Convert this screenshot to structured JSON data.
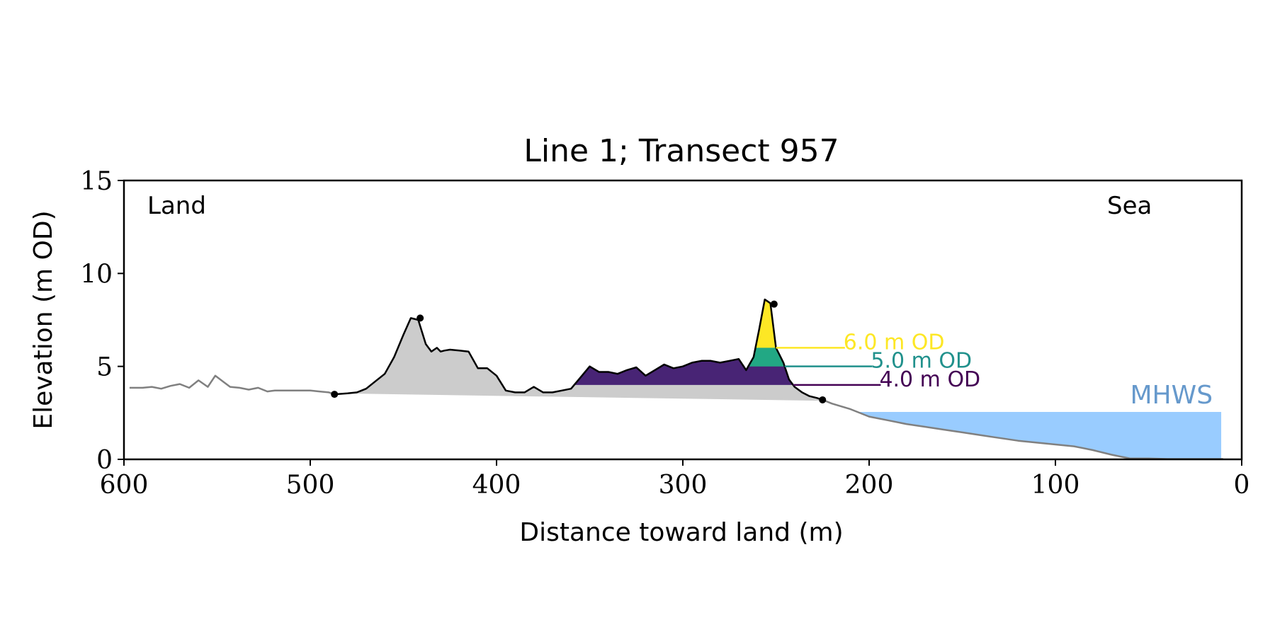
{
  "chart_data": {
    "type": "area",
    "title": "Line 1; Transect 957",
    "xlabel": "Distance toward land (m)",
    "ylabel": "Elevation (m OD)",
    "xlim": [
      600,
      0
    ],
    "ylim": [
      0,
      15
    ],
    "x_ticks": [
      600,
      500,
      400,
      300,
      200,
      100,
      0
    ],
    "y_ticks": [
      0,
      5,
      10,
      15
    ],
    "grid": false,
    "annotations": {
      "left": "Land",
      "right": "Sea"
    },
    "colors": {
      "profile_outer": "#808080",
      "profile_main": "#000000",
      "dune_fill": "#cccccc",
      "level_4": "#440154",
      "level_4_fill": "#482475",
      "level_5": "#21918c",
      "level_5_fill": "#22a884",
      "level_6": "#fde725",
      "mhws": "#99ccff",
      "mhws_label": "#6699cc"
    },
    "profile": {
      "x": [
        597,
        590,
        585,
        580,
        575,
        570,
        565,
        560,
        555,
        551,
        547,
        543,
        538,
        533,
        528,
        523,
        519,
        514,
        510,
        505,
        500,
        495,
        490,
        487
      ],
      "y": [
        3.85,
        3.85,
        3.9,
        3.8,
        3.95,
        4.05,
        3.85,
        4.25,
        3.9,
        4.5,
        4.2,
        3.9,
        3.85,
        3.75,
        3.85,
        3.65,
        3.7,
        3.7,
        3.7,
        3.7,
        3.7,
        3.65,
        3.6,
        3.5
      ]
    },
    "profile_seaward": {
      "x": [
        225,
        220,
        210,
        200,
        190,
        180,
        170,
        160,
        150,
        140,
        130,
        120,
        110,
        100,
        90,
        80,
        70,
        65,
        60,
        50,
        40,
        30,
        20,
        10
      ],
      "y": [
        3.2,
        3.0,
        2.7,
        2.3,
        2.1,
        1.9,
        1.75,
        1.6,
        1.45,
        1.3,
        1.15,
        1.0,
        0.9,
        0.8,
        0.7,
        0.5,
        0.25,
        0.15,
        0.05,
        0.05,
        0.02,
        0.02,
        0.02,
        0.02
      ]
    },
    "dune_profile": {
      "x": [
        487,
        480,
        475,
        470,
        465,
        460,
        455,
        450,
        446,
        442,
        438,
        435,
        432,
        430,
        428,
        425,
        420,
        415,
        410,
        405,
        400,
        395,
        390,
        385,
        380,
        375,
        370,
        365,
        360,
        355,
        350,
        345,
        340,
        335,
        330,
        325,
        320,
        315,
        310,
        305,
        300,
        295,
        290,
        285,
        280,
        275,
        270,
        266,
        262,
        259,
        256,
        253,
        250,
        248,
        246,
        243,
        240,
        236,
        232,
        228,
        225
      ],
      "y": [
        3.5,
        3.55,
        3.6,
        3.8,
        4.2,
        4.6,
        5.5,
        6.7,
        7.6,
        7.5,
        6.2,
        5.8,
        6.0,
        5.8,
        5.85,
        5.9,
        5.85,
        5.8,
        4.9,
        4.9,
        4.5,
        3.7,
        3.6,
        3.6,
        3.9,
        3.6,
        3.6,
        3.7,
        3.8,
        4.4,
        5.0,
        4.7,
        4.7,
        4.6,
        4.8,
        4.95,
        4.5,
        4.8,
        5.1,
        4.9,
        5.0,
        5.2,
        5.3,
        5.3,
        5.2,
        5.3,
        5.4,
        4.8,
        5.5,
        7.0,
        8.6,
        8.4,
        6.0,
        5.6,
        5.2,
        4.3,
        3.9,
        3.6,
        3.4,
        3.3,
        3.2
      ]
    },
    "markers": {
      "x": [
        487,
        441,
        251,
        225
      ],
      "y": [
        3.5,
        7.6,
        8.35,
        3.2
      ]
    },
    "baseline": {
      "x": [
        487,
        225
      ],
      "y": [
        3.55,
        3.15
      ]
    },
    "levels": [
      {
        "label": "6.0 m OD",
        "value": 6.0
      },
      {
        "label": "5.0 m OD",
        "value": 5.0
      },
      {
        "label": "4.0 m OD",
        "value": 4.0
      }
    ],
    "mhws": {
      "label": "MHWS",
      "value": 2.55,
      "x_end": 11
    }
  }
}
